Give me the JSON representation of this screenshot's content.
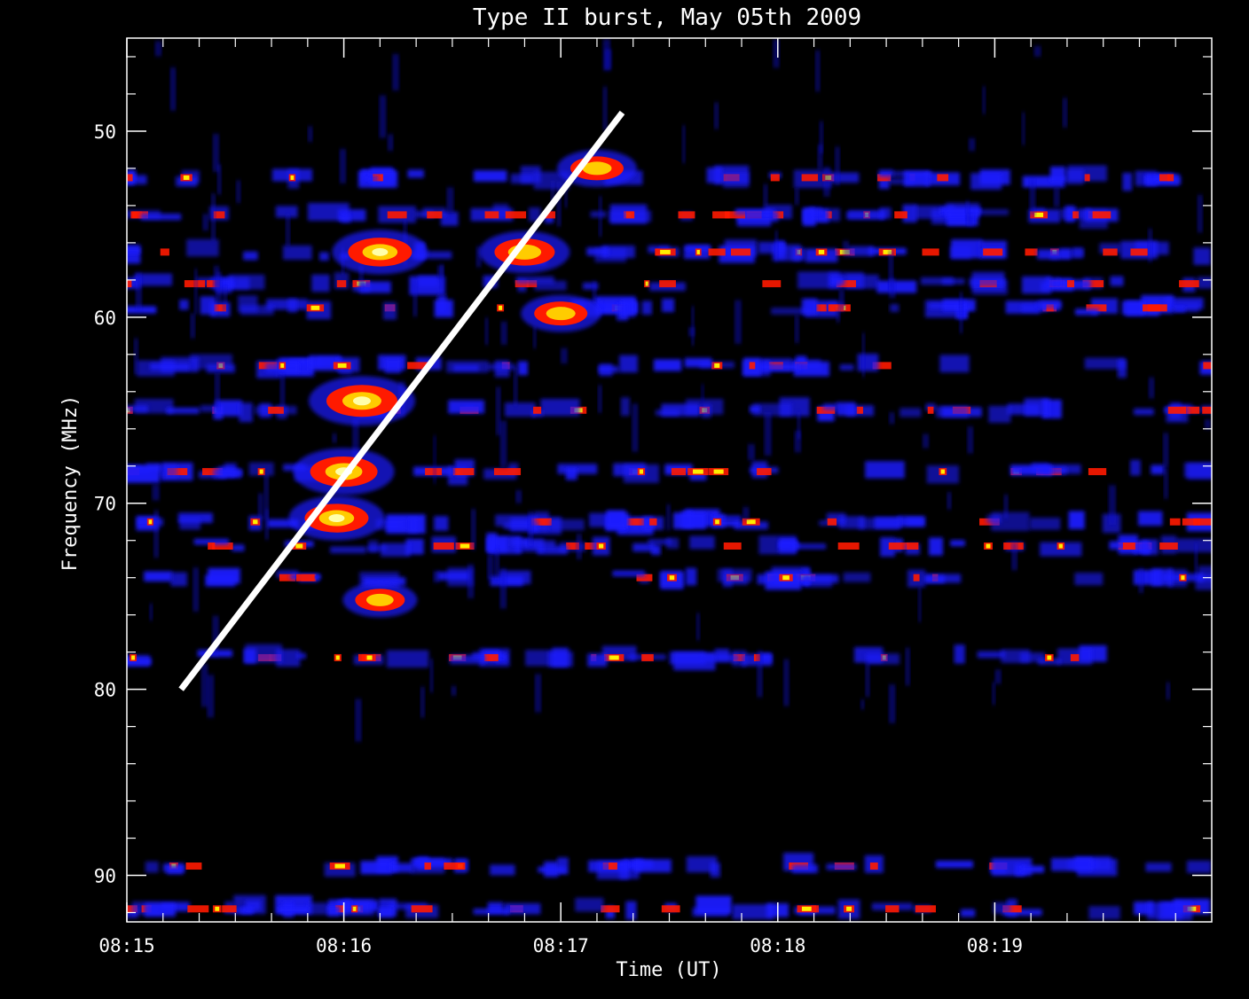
{
  "chart_data": {
    "type": "heatmap",
    "title": "Type II burst, May 05th 2009",
    "xlabel": "Time (UT)",
    "ylabel": "Frequency (MHz)",
    "x_axis": {
      "unit": "UT",
      "range": [
        "08:15:00",
        "08:19:59"
      ],
      "tick_labels": [
        "08:15",
        "08:16",
        "08:17",
        "08:18",
        "08:19"
      ]
    },
    "y_axis": {
      "unit": "MHz",
      "range": [
        45,
        92.5
      ],
      "inverted": true,
      "tick_labels": [
        "50",
        "60",
        "70",
        "80",
        "90"
      ],
      "tick_values": [
        50,
        60,
        70,
        80,
        90
      ]
    },
    "colormap": [
      "#000000",
      "#0000ff",
      "#ff0000",
      "#ffff00",
      "#ffffff"
    ],
    "grid": false,
    "emission_bands_mhz": [
      52.5,
      54.5,
      56.5,
      58.2,
      59.5,
      62.6,
      65.0,
      68.3,
      71.0,
      72.3,
      74.0,
      78.3,
      89.5,
      91.8
    ],
    "bright_features": [
      {
        "time": "08:16:05",
        "freq_mhz": 64.5,
        "intensity": 1.0
      },
      {
        "time": "08:16:00",
        "freq_mhz": 68.3,
        "intensity": 0.95
      },
      {
        "time": "08:15:58",
        "freq_mhz": 70.8,
        "intensity": 0.9
      },
      {
        "time": "08:16:10",
        "freq_mhz": 56.5,
        "intensity": 0.9
      },
      {
        "time": "08:16:50",
        "freq_mhz": 56.5,
        "intensity": 0.85
      },
      {
        "time": "08:17:00",
        "freq_mhz": 59.8,
        "intensity": 0.75
      },
      {
        "time": "08:17:10",
        "freq_mhz": 52.0,
        "intensity": 0.75
      },
      {
        "time": "08:16:10",
        "freq_mhz": 75.2,
        "intensity": 0.7
      }
    ],
    "drift_line": {
      "color": "#ffffff",
      "start": {
        "time": "08:15:15",
        "freq_mhz": 80.0
      },
      "end": {
        "time": "08:17:17",
        "freq_mhz": 49.0
      }
    }
  }
}
